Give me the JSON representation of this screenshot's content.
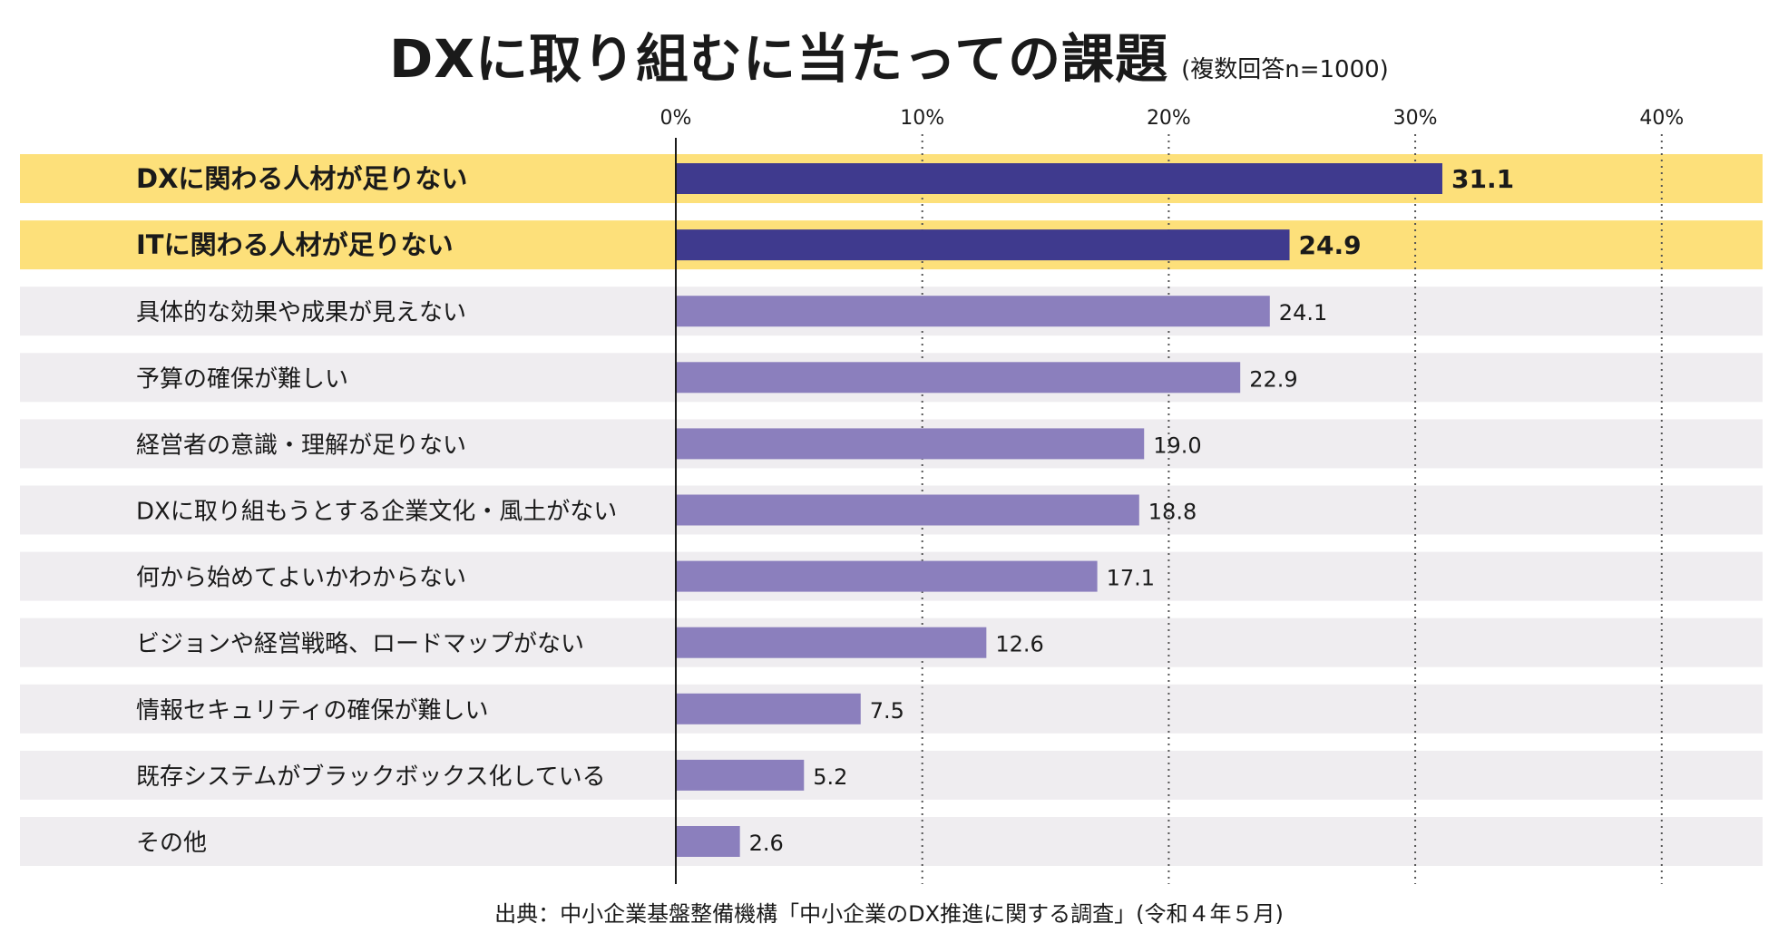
{
  "title": "DXに取り組むに当たっての課題",
  "subtitle": "(複数回答n=1000)",
  "source": "出典：中小企業基盤整備機構「中小企業のDX推進に関する調査」(令和４年５月)",
  "colors": {
    "highlight_row": "#fde07a",
    "normal_row": "#efedf0",
    "highlight_bar": "#3f3a8e",
    "normal_bar": "#8b7fbd",
    "text": "#1a1a1a"
  },
  "chart_data": {
    "type": "bar",
    "orientation": "horizontal",
    "xlim": [
      0,
      40
    ],
    "ticks": [
      0,
      10,
      20,
      30,
      40
    ],
    "tick_labels": [
      "0%",
      "10%",
      "20%",
      "30%",
      "40%"
    ],
    "grid": "dotted vertical at 10% intervals",
    "categories": [
      "DXに関わる人材が足りない",
      "ITに関わる人材が足りない",
      "具体的な効果や成果が見えない",
      "予算の確保が難しい",
      "経営者の意識・理解が足りない",
      "DXに取り組もうとする企業文化・風土がない",
      "何から始めてよいかわからない",
      "ビジョンや経営戦略、ロードマップがない",
      "情報セキュリティの確保が難しい",
      "既存システムがブラックボックス化している",
      "その他"
    ],
    "values": [
      31.1,
      24.9,
      24.1,
      22.9,
      19.0,
      18.8,
      17.1,
      12.6,
      7.5,
      5.2,
      2.6
    ],
    "value_labels": [
      "31.1",
      "24.9",
      "24.1",
      "22.9",
      "19.0",
      "18.8",
      "17.1",
      "12.6",
      "7.5",
      "5.2",
      "2.6"
    ],
    "highlighted": [
      true,
      true,
      false,
      false,
      false,
      false,
      false,
      false,
      false,
      false,
      false
    ]
  }
}
